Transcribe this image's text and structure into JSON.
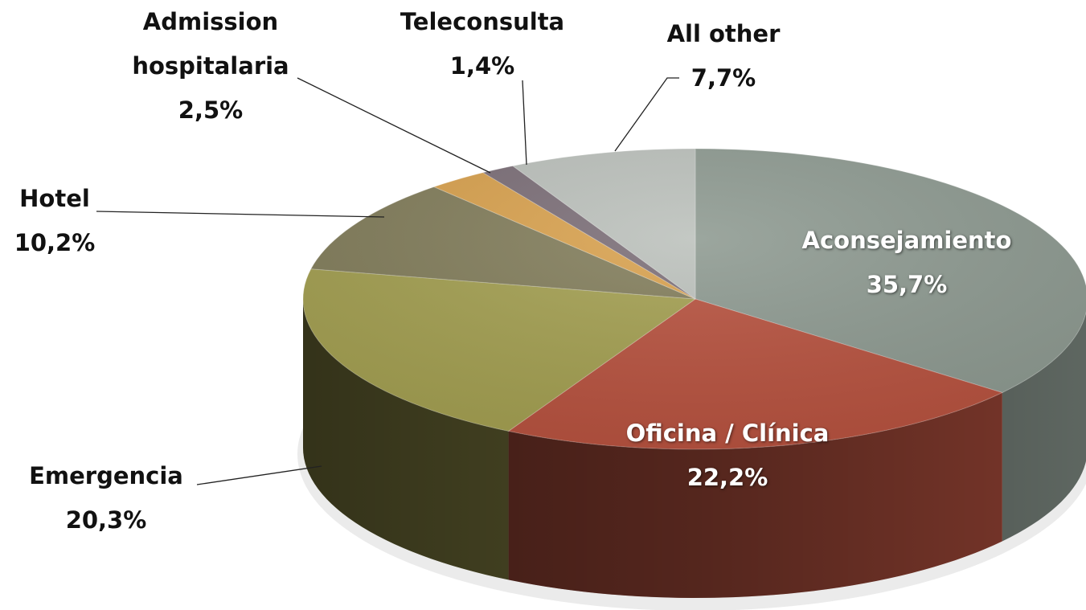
{
  "chart_data": {
    "type": "pie",
    "categories": [
      "Aconsejamiento",
      "Oficina / Clínica",
      "Emergencia",
      "Hotel",
      "Admission hospitalaria",
      "Teleconsulta",
      "All other"
    ],
    "values": [
      35.7,
      22.2,
      20.3,
      10.2,
      2.5,
      1.4,
      7.7
    ],
    "value_labels": [
      "35,7%",
      "22,2%",
      "20,3%",
      "10,2%",
      "2,5%",
      "1,4%",
      "7,7%"
    ],
    "colors": [
      "#8e9a91",
      "#b85340",
      "#a4a052",
      "#837e5c",
      "#d9a24f",
      "#7c6f78",
      "#bcc1bc"
    ]
  }
}
